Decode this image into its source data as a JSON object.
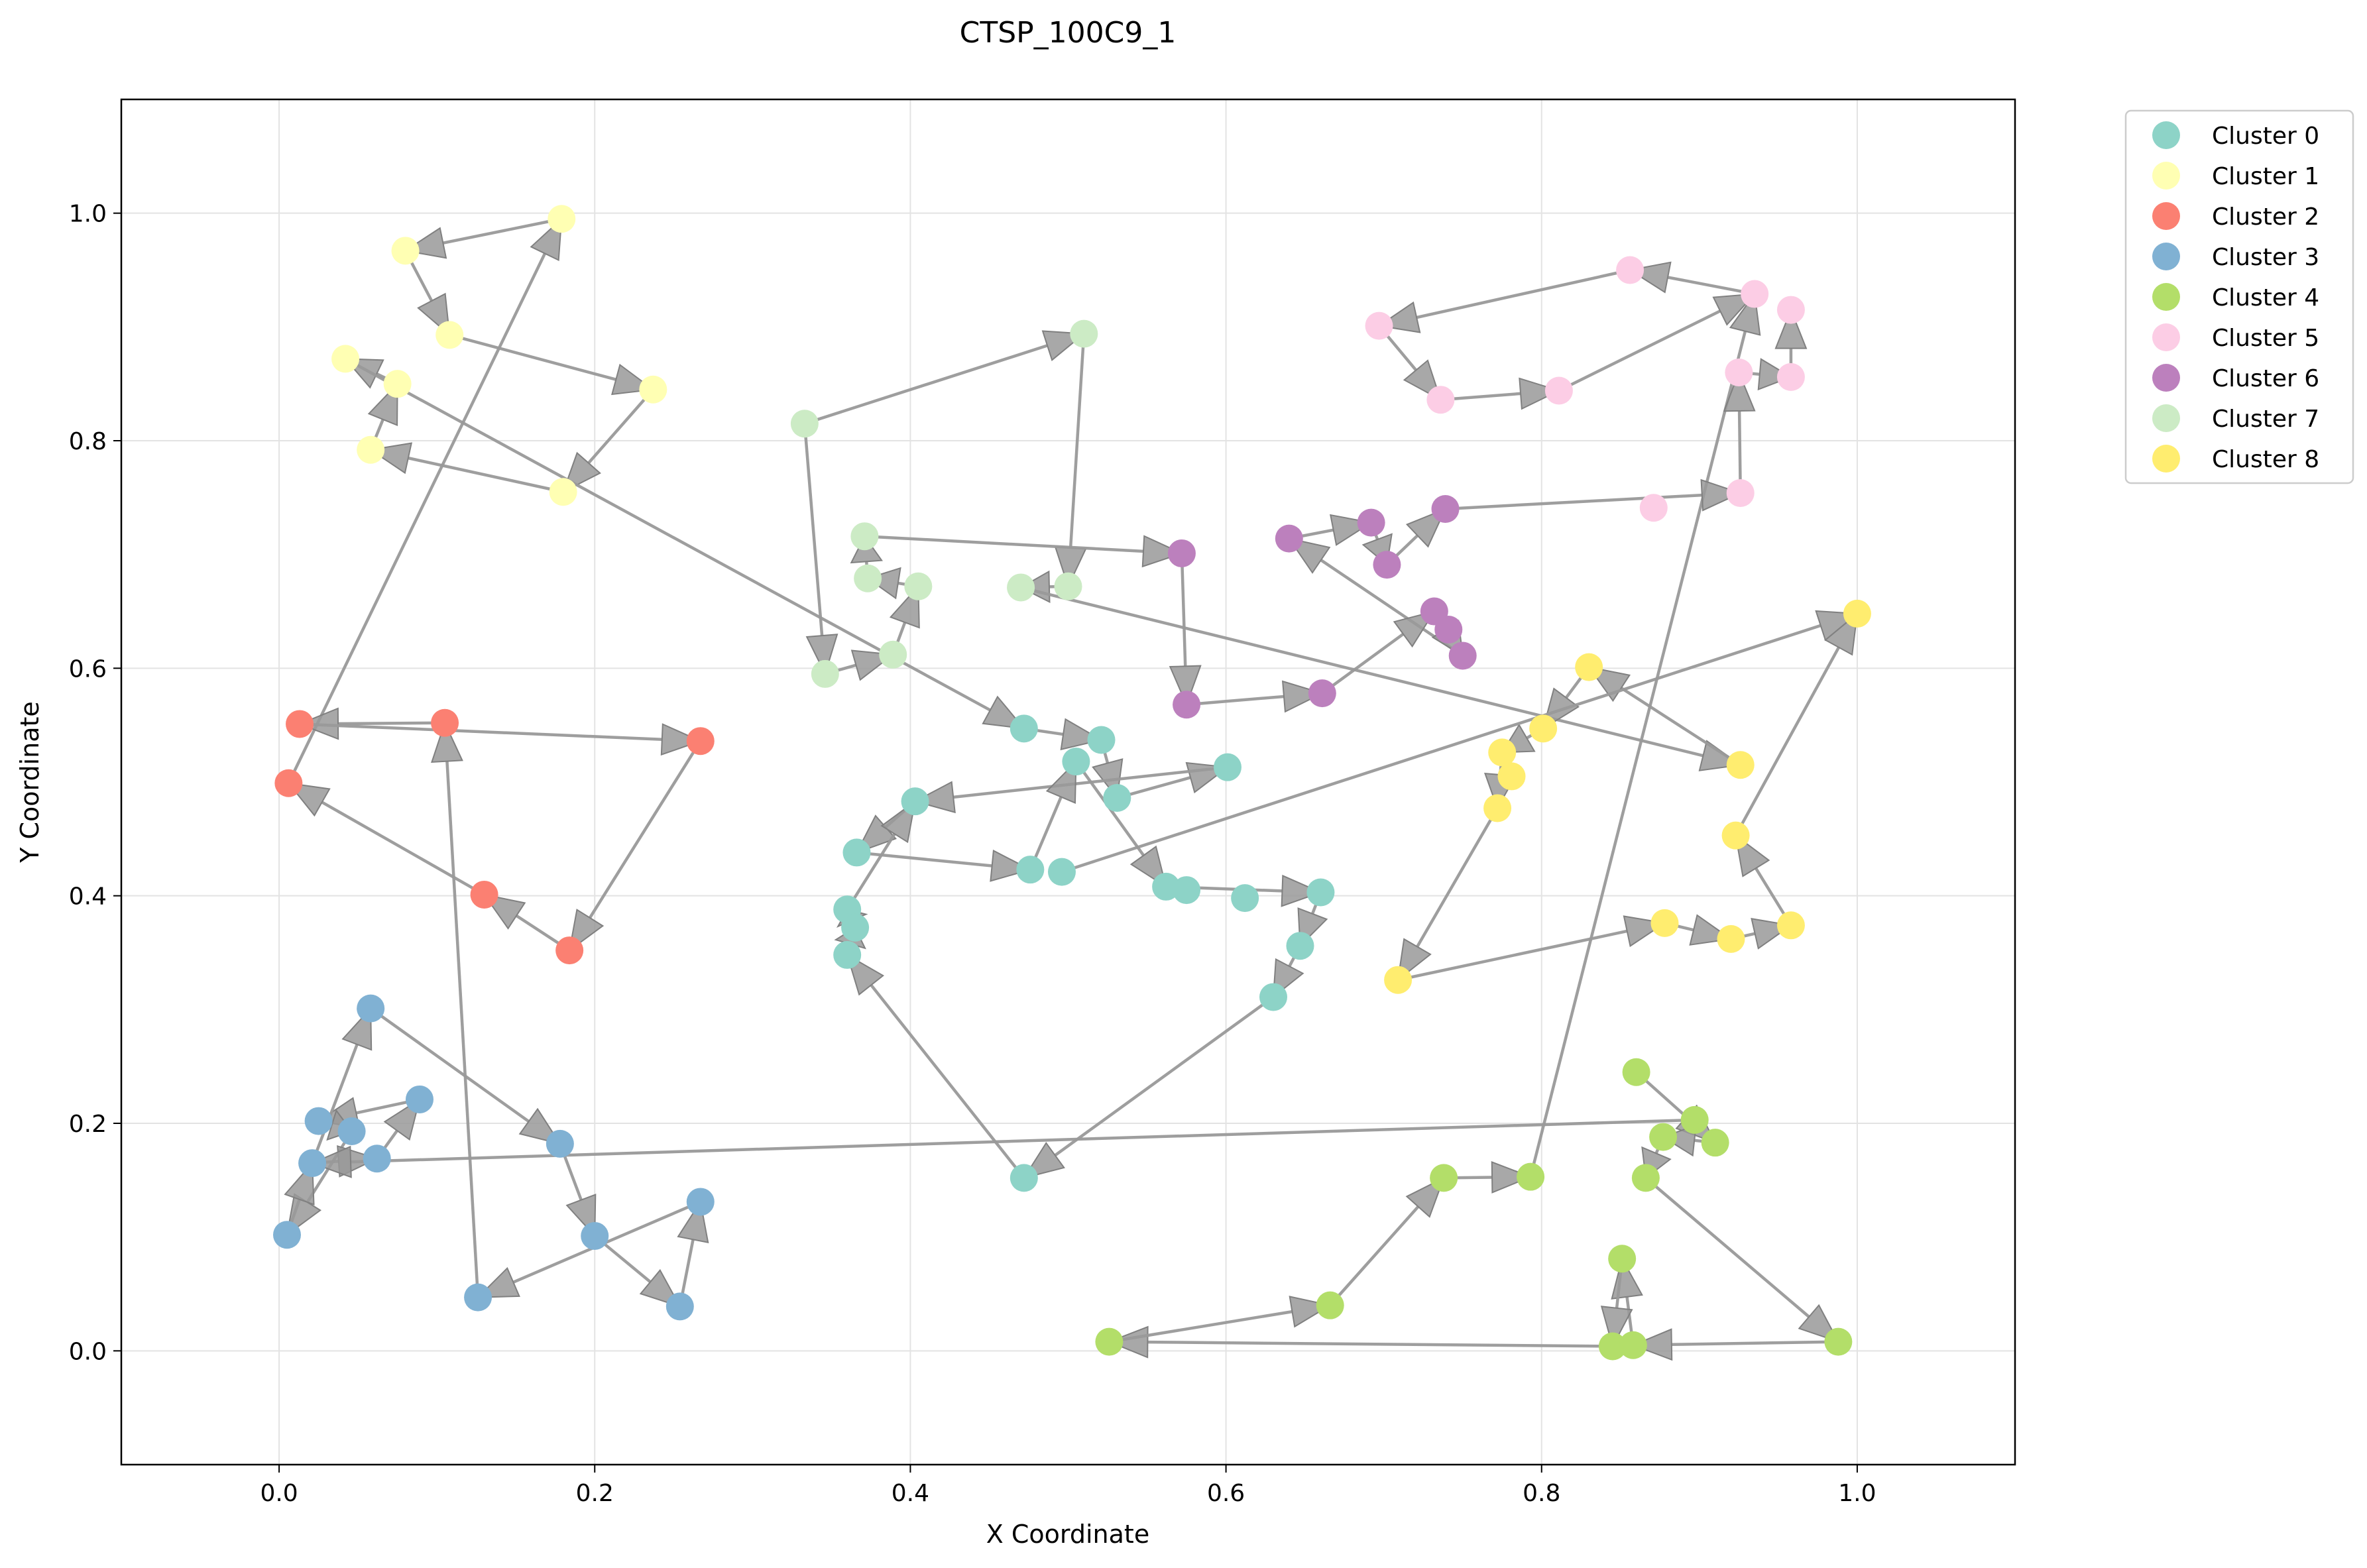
{
  "chart_data": {
    "type": "scatter",
    "title": "CTSP_100C9_1",
    "xlabel": "X Coordinate",
    "ylabel": "Y Coordinate",
    "xlim": [
      -0.1,
      1.1
    ],
    "ylim": [
      -0.1,
      1.1
    ],
    "xticks": [
      0.0,
      0.2,
      0.4,
      0.6,
      0.8,
      1.0
    ],
    "yticks": [
      0.0,
      0.2,
      0.4,
      0.6,
      0.8,
      1.0
    ],
    "xtick_labels": [
      "0.0",
      "0.2",
      "0.4",
      "0.6",
      "0.8",
      "1.0"
    ],
    "ytick_labels": [
      "0.0",
      "0.2",
      "0.4",
      "0.6",
      "0.8",
      "1.0"
    ],
    "grid": true,
    "legend_position": "outside-top-right",
    "arrow_color": "#999999",
    "series": [
      {
        "name": "Cluster 0",
        "color": "#8dd3c7",
        "points": [
          [
            0.472,
            0.547
          ],
          [
            0.521,
            0.537
          ],
          [
            0.531,
            0.486
          ],
          [
            0.601,
            0.513
          ],
          [
            0.403,
            0.483
          ],
          [
            0.366,
            0.438
          ],
          [
            0.476,
            0.423
          ],
          [
            0.496,
            0.421
          ],
          [
            0.505,
            0.518
          ],
          [
            0.562,
            0.408
          ],
          [
            0.575,
            0.405
          ],
          [
            0.612,
            0.398
          ],
          [
            0.66,
            0.403
          ],
          [
            0.647,
            0.356
          ],
          [
            0.63,
            0.311
          ],
          [
            0.36,
            0.388
          ],
          [
            0.365,
            0.372
          ],
          [
            0.36,
            0.348
          ],
          [
            0.472,
            0.152
          ]
        ]
      },
      {
        "name": "Cluster 1",
        "color": "#ffffb3",
        "points": [
          [
            0.179,
            0.995
          ],
          [
            0.08,
            0.967
          ],
          [
            0.108,
            0.893
          ],
          [
            0.237,
            0.845
          ],
          [
            0.042,
            0.872
          ],
          [
            0.075,
            0.85
          ],
          [
            0.058,
            0.792
          ],
          [
            0.18,
            0.755
          ]
        ]
      },
      {
        "name": "Cluster 2",
        "color": "#fb8072",
        "points": [
          [
            0.013,
            0.551
          ],
          [
            0.105,
            0.552
          ],
          [
            0.267,
            0.536
          ],
          [
            0.184,
            0.352
          ],
          [
            0.13,
            0.401
          ],
          [
            0.006,
            0.499
          ]
        ]
      },
      {
        "name": "Cluster 3",
        "color": "#80b1d3",
        "points": [
          [
            0.058,
            0.301
          ],
          [
            0.089,
            0.221
          ],
          [
            0.025,
            0.202
          ],
          [
            0.046,
            0.193
          ],
          [
            0.062,
            0.169
          ],
          [
            0.021,
            0.165
          ],
          [
            0.005,
            0.102
          ],
          [
            0.178,
            0.182
          ],
          [
            0.2,
            0.101
          ],
          [
            0.254,
            0.039
          ],
          [
            0.267,
            0.131
          ],
          [
            0.126,
            0.047
          ]
        ]
      },
      {
        "name": "Cluster 4",
        "color": "#b3de69",
        "points": [
          [
            0.86,
            0.245
          ],
          [
            0.897,
            0.203
          ],
          [
            0.877,
            0.188
          ],
          [
            0.91,
            0.183
          ],
          [
            0.866,
            0.152
          ],
          [
            0.793,
            0.153
          ],
          [
            0.738,
            0.152
          ],
          [
            0.666,
            0.04
          ],
          [
            0.526,
            0.008
          ],
          [
            0.845,
            0.004
          ],
          [
            0.858,
            0.005
          ],
          [
            0.851,
            0.081
          ],
          [
            0.988,
            0.008
          ]
        ]
      },
      {
        "name": "Cluster 5",
        "color": "#fccde5",
        "points": [
          [
            0.856,
            0.95
          ],
          [
            0.935,
            0.929
          ],
          [
            0.958,
            0.915
          ],
          [
            0.958,
            0.856
          ],
          [
            0.925,
            0.86
          ],
          [
            0.697,
            0.901
          ],
          [
            0.736,
            0.836
          ],
          [
            0.811,
            0.844
          ],
          [
            0.871,
            0.741
          ],
          [
            0.926,
            0.754
          ]
        ]
      },
      {
        "name": "Cluster 6",
        "color": "#bc80bd",
        "points": [
          [
            0.64,
            0.714
          ],
          [
            0.692,
            0.728
          ],
          [
            0.702,
            0.691
          ],
          [
            0.739,
            0.74
          ],
          [
            0.572,
            0.701
          ],
          [
            0.575,
            0.568
          ],
          [
            0.661,
            0.578
          ],
          [
            0.732,
            0.65
          ],
          [
            0.741,
            0.634
          ],
          [
            0.75,
            0.611
          ]
        ]
      },
      {
        "name": "Cluster 7",
        "color": "#ccebc5",
        "points": [
          [
            0.333,
            0.815
          ],
          [
            0.51,
            0.894
          ],
          [
            0.371,
            0.716
          ],
          [
            0.373,
            0.679
          ],
          [
            0.405,
            0.672
          ],
          [
            0.47,
            0.671
          ],
          [
            0.5,
            0.672
          ],
          [
            0.389,
            0.612
          ],
          [
            0.346,
            0.595
          ]
        ]
      },
      {
        "name": "Cluster 8",
        "color": "#ffed6f",
        "points": [
          [
            0.83,
            0.601
          ],
          [
            0.801,
            0.547
          ],
          [
            0.775,
            0.526
          ],
          [
            0.781,
            0.505
          ],
          [
            0.772,
            0.477
          ],
          [
            0.926,
            0.515
          ],
          [
            1.0,
            0.648
          ],
          [
            0.923,
            0.453
          ],
          [
            0.958,
            0.374
          ],
          [
            0.878,
            0.376
          ],
          [
            0.92,
            0.362
          ],
          [
            0.709,
            0.326
          ]
        ]
      }
    ],
    "arrows": [
      [
        0.472,
        0.547,
        0.521,
        0.537
      ],
      [
        0.521,
        0.537,
        0.531,
        0.486
      ],
      [
        0.531,
        0.486,
        0.601,
        0.513
      ],
      [
        0.601,
        0.513,
        0.403,
        0.483
      ],
      [
        0.403,
        0.483,
        0.366,
        0.438
      ],
      [
        0.366,
        0.438,
        0.476,
        0.423
      ],
      [
        0.476,
        0.423,
        0.505,
        0.518
      ],
      [
        0.505,
        0.518,
        0.562,
        0.408
      ],
      [
        0.562,
        0.408,
        0.66,
        0.403
      ],
      [
        0.66,
        0.403,
        0.647,
        0.356
      ],
      [
        0.647,
        0.356,
        0.63,
        0.311
      ],
      [
        0.63,
        0.311,
        0.472,
        0.152
      ],
      [
        0.472,
        0.152,
        0.36,
        0.348
      ],
      [
        0.36,
        0.348,
        0.365,
        0.372
      ],
      [
        0.365,
        0.372,
        0.36,
        0.388
      ],
      [
        0.36,
        0.388,
        0.403,
        0.483
      ],
      [
        0.179,
        0.995,
        0.08,
        0.967
      ],
      [
        0.08,
        0.967,
        0.108,
        0.893
      ],
      [
        0.108,
        0.893,
        0.237,
        0.845
      ],
      [
        0.237,
        0.845,
        0.18,
        0.755
      ],
      [
        0.18,
        0.755,
        0.058,
        0.792
      ],
      [
        0.058,
        0.792,
        0.075,
        0.85
      ],
      [
        0.075,
        0.85,
        0.042,
        0.872
      ],
      [
        0.042,
        0.872,
        0.472,
        0.547
      ],
      [
        0.006,
        0.499,
        0.179,
        0.995
      ],
      [
        0.105,
        0.552,
        0.013,
        0.551
      ],
      [
        0.013,
        0.551,
        0.267,
        0.536
      ],
      [
        0.267,
        0.536,
        0.184,
        0.352
      ],
      [
        0.184,
        0.352,
        0.13,
        0.401
      ],
      [
        0.13,
        0.401,
        0.006,
        0.499
      ],
      [
        0.058,
        0.301,
        0.178,
        0.182
      ],
      [
        0.178,
        0.182,
        0.2,
        0.101
      ],
      [
        0.2,
        0.101,
        0.254,
        0.039
      ],
      [
        0.254,
        0.039,
        0.267,
        0.131
      ],
      [
        0.267,
        0.131,
        0.126,
        0.047
      ],
      [
        0.126,
        0.047,
        0.105,
        0.552
      ],
      [
        0.062,
        0.169,
        0.089,
        0.221
      ],
      [
        0.089,
        0.221,
        0.025,
        0.202
      ],
      [
        0.025,
        0.202,
        0.046,
        0.193
      ],
      [
        0.046,
        0.193,
        0.005,
        0.102
      ],
      [
        0.005,
        0.102,
        0.021,
        0.165
      ],
      [
        0.021,
        0.165,
        0.062,
        0.169
      ],
      [
        0.021,
        0.165,
        0.058,
        0.301
      ],
      [
        0.897,
        0.203,
        0.021,
        0.165
      ],
      [
        0.86,
        0.245,
        0.91,
        0.183
      ],
      [
        0.91,
        0.183,
        0.877,
        0.188
      ],
      [
        0.877,
        0.188,
        0.866,
        0.152
      ],
      [
        0.866,
        0.152,
        0.988,
        0.008
      ],
      [
        0.988,
        0.008,
        0.858,
        0.005
      ],
      [
        0.858,
        0.005,
        0.851,
        0.081
      ],
      [
        0.851,
        0.081,
        0.845,
        0.004
      ],
      [
        0.845,
        0.004,
        0.526,
        0.008
      ],
      [
        0.526,
        0.008,
        0.666,
        0.04
      ],
      [
        0.666,
        0.04,
        0.738,
        0.152
      ],
      [
        0.738,
        0.152,
        0.793,
        0.153
      ],
      [
        0.793,
        0.153,
        0.935,
        0.929
      ],
      [
        0.935,
        0.929,
        0.856,
        0.95
      ],
      [
        0.856,
        0.95,
        0.697,
        0.901
      ],
      [
        0.697,
        0.901,
        0.736,
        0.836
      ],
      [
        0.736,
        0.836,
        0.811,
        0.844
      ],
      [
        0.811,
        0.844,
        0.935,
        0.929
      ],
      [
        0.958,
        0.856,
        0.958,
        0.915
      ],
      [
        0.925,
        0.86,
        0.958,
        0.856
      ],
      [
        0.926,
        0.754,
        0.925,
        0.86
      ],
      [
        0.739,
        0.74,
        0.926,
        0.754
      ],
      [
        0.64,
        0.714,
        0.692,
        0.728
      ],
      [
        0.692,
        0.728,
        0.702,
        0.691
      ],
      [
        0.702,
        0.691,
        0.739,
        0.74
      ],
      [
        0.75,
        0.611,
        0.64,
        0.714
      ],
      [
        0.572,
        0.701,
        0.575,
        0.568
      ],
      [
        0.575,
        0.568,
        0.661,
        0.578
      ],
      [
        0.661,
        0.578,
        0.732,
        0.65
      ],
      [
        0.732,
        0.65,
        0.75,
        0.611
      ],
      [
        0.333,
        0.815,
        0.51,
        0.894
      ],
      [
        0.51,
        0.894,
        0.5,
        0.672
      ],
      [
        0.5,
        0.672,
        0.47,
        0.671
      ],
      [
        0.371,
        0.716,
        0.572,
        0.701
      ],
      [
        0.373,
        0.679,
        0.371,
        0.716
      ],
      [
        0.405,
        0.672,
        0.373,
        0.679
      ],
      [
        0.389,
        0.612,
        0.405,
        0.672
      ],
      [
        0.346,
        0.595,
        0.389,
        0.612
      ],
      [
        0.333,
        0.815,
        0.346,
        0.595
      ],
      [
        0.47,
        0.671,
        0.926,
        0.515
      ],
      [
        0.926,
        0.515,
        0.83,
        0.601
      ],
      [
        0.83,
        0.601,
        0.801,
        0.547
      ],
      [
        0.801,
        0.547,
        0.775,
        0.526
      ],
      [
        0.775,
        0.526,
        0.772,
        0.477
      ],
      [
        0.772,
        0.477,
        0.709,
        0.326
      ],
      [
        0.709,
        0.326,
        0.878,
        0.376
      ],
      [
        0.878,
        0.376,
        0.92,
        0.362
      ],
      [
        0.92,
        0.362,
        0.958,
        0.374
      ],
      [
        0.958,
        0.374,
        0.923,
        0.453
      ],
      [
        0.923,
        0.453,
        1.0,
        0.648
      ],
      [
        0.496,
        0.421,
        1.0,
        0.648
      ]
    ]
  }
}
